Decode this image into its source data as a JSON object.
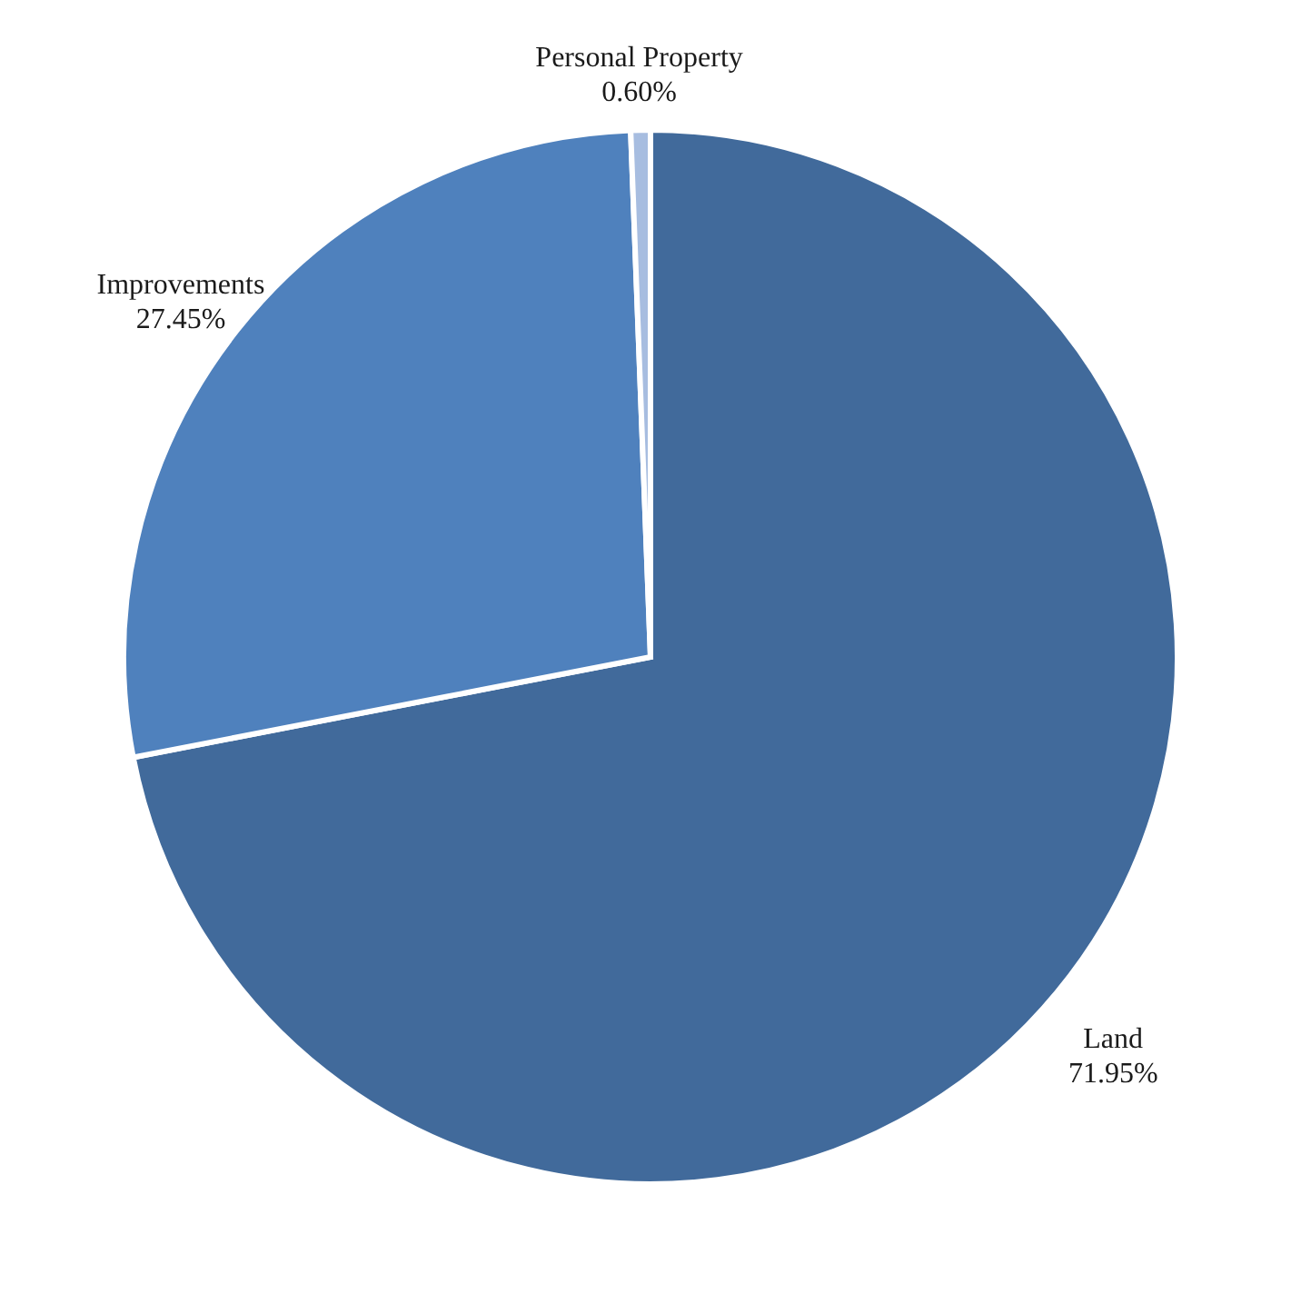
{
  "chart_data": {
    "type": "pie",
    "categories": [
      "Land",
      "Improvements",
      "Personal Property"
    ],
    "values": [
      71.95,
      27.45,
      0.6
    ],
    "value_labels": [
      "71.95%",
      "27.45%",
      "0.60%"
    ],
    "colors": [
      "#416a9b",
      "#4f81bd",
      "#a7bde0"
    ]
  }
}
